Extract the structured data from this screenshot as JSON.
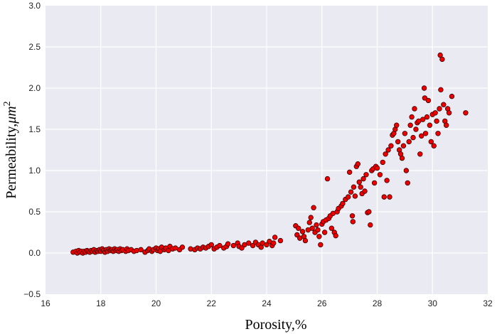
{
  "chart_data": {
    "type": "scatter",
    "title": "",
    "xlabel": "Porosity,%",
    "ylabel_main": "Permeability,",
    "ylabel_unit": "μm",
    "ylabel_exp": "2",
    "xlim": [
      16,
      32
    ],
    "ylim": [
      -0.5,
      3.0
    ],
    "x_ticks": [
      16,
      18,
      20,
      22,
      24,
      26,
      28,
      30,
      32
    ],
    "x_tick_labels": [
      "16",
      "18",
      "20",
      "22",
      "24",
      "26",
      "28",
      "30",
      "32"
    ],
    "y_ticks": [
      -0.5,
      0.0,
      0.5,
      1.0,
      1.5,
      2.0,
      2.5,
      3.0
    ],
    "y_tick_labels": [
      "−0.5",
      "0.0",
      "0.5",
      "1.0",
      "1.5",
      "2.0",
      "2.5",
      "3.0"
    ],
    "grid": true,
    "legend": "none",
    "colors": {
      "plot_background": "#eaeaf2",
      "grid": "#ffffff",
      "marker_fill": "#ee0000",
      "marker_edge": "#3a0000"
    },
    "points": [
      [
        17.0,
        0.01
      ],
      [
        17.1,
        0.02
      ],
      [
        17.15,
        0.0
      ],
      [
        17.2,
        0.03
      ],
      [
        17.25,
        0.01
      ],
      [
        17.3,
        0.02
      ],
      [
        17.35,
        0.0
      ],
      [
        17.4,
        0.02
      ],
      [
        17.45,
        0.01
      ],
      [
        17.5,
        0.03
      ],
      [
        17.55,
        0.02
      ],
      [
        17.6,
        0.01
      ],
      [
        17.65,
        0.03
      ],
      [
        17.7,
        0.02
      ],
      [
        17.75,
        0.04
      ],
      [
        17.8,
        0.01
      ],
      [
        17.85,
        0.03
      ],
      [
        17.9,
        0.02
      ],
      [
        17.95,
        0.04
      ],
      [
        18.0,
        0.02
      ],
      [
        18.05,
        0.05
      ],
      [
        18.1,
        0.03
      ],
      [
        18.15,
        0.01
      ],
      [
        18.2,
        0.04
      ],
      [
        18.25,
        0.02
      ],
      [
        18.3,
        0.05
      ],
      [
        18.35,
        0.03
      ],
      [
        18.4,
        0.04
      ],
      [
        18.45,
        0.02
      ],
      [
        18.5,
        0.05
      ],
      [
        18.55,
        0.03
      ],
      [
        18.6,
        0.04
      ],
      [
        18.65,
        0.02
      ],
      [
        18.7,
        0.05
      ],
      [
        18.75,
        0.03
      ],
      [
        18.8,
        0.04
      ],
      [
        18.9,
        0.02
      ],
      [
        18.95,
        0.05
      ],
      [
        19.0,
        0.03
      ],
      [
        19.1,
        0.04
      ],
      [
        19.2,
        0.02
      ],
      [
        19.3,
        0.03
      ],
      [
        19.45,
        0.04
      ],
      [
        19.6,
        0.01
      ],
      [
        19.7,
        0.03
      ],
      [
        19.75,
        0.05
      ],
      [
        19.85,
        0.02
      ],
      [
        19.9,
        0.04
      ],
      [
        20.0,
        0.06
      ],
      [
        20.05,
        0.03
      ],
      [
        20.1,
        0.05
      ],
      [
        20.15,
        0.02
      ],
      [
        20.2,
        0.07
      ],
      [
        20.3,
        0.04
      ],
      [
        20.35,
        0.06
      ],
      [
        20.45,
        0.03
      ],
      [
        20.5,
        0.08
      ],
      [
        20.6,
        0.05
      ],
      [
        20.7,
        0.06
      ],
      [
        20.85,
        0.04
      ],
      [
        20.95,
        0.07
      ],
      [
        21.25,
        0.05
      ],
      [
        21.4,
        0.04
      ],
      [
        21.5,
        0.06
      ],
      [
        21.6,
        0.05
      ],
      [
        21.7,
        0.07
      ],
      [
        21.8,
        0.06
      ],
      [
        21.9,
        0.08
      ],
      [
        22.0,
        0.1
      ],
      [
        22.1,
        0.05
      ],
      [
        22.2,
        0.07
      ],
      [
        22.3,
        0.09
      ],
      [
        22.45,
        0.06
      ],
      [
        22.55,
        0.08
      ],
      [
        22.6,
        0.11
      ],
      [
        22.8,
        0.09
      ],
      [
        22.95,
        0.12
      ],
      [
        23.0,
        0.08
      ],
      [
        23.1,
        0.06
      ],
      [
        23.2,
        0.1
      ],
      [
        23.35,
        0.12
      ],
      [
        23.5,
        0.09
      ],
      [
        23.6,
        0.13
      ],
      [
        23.7,
        0.1
      ],
      [
        23.8,
        0.07
      ],
      [
        23.85,
        0.12
      ],
      [
        24.0,
        0.1
      ],
      [
        24.1,
        0.14
      ],
      [
        24.2,
        0.09
      ],
      [
        24.25,
        0.12
      ],
      [
        24.3,
        0.19
      ],
      [
        24.5,
        0.15
      ],
      [
        25.05,
        0.33
      ],
      [
        25.1,
        0.22
      ],
      [
        25.15,
        0.3
      ],
      [
        25.2,
        0.18
      ],
      [
        25.3,
        0.26
      ],
      [
        25.35,
        0.2
      ],
      [
        25.4,
        0.15
      ],
      [
        25.5,
        0.28
      ],
      [
        25.55,
        0.37
      ],
      [
        25.6,
        0.43
      ],
      [
        25.65,
        0.3
      ],
      [
        25.7,
        0.55
      ],
      [
        25.75,
        0.25
      ],
      [
        25.8,
        0.34
      ],
      [
        25.85,
        0.28
      ],
      [
        25.9,
        0.2
      ],
      [
        25.95,
        0.1
      ],
      [
        26.0,
        0.35
      ],
      [
        26.05,
        0.38
      ],
      [
        26.1,
        0.25
      ],
      [
        26.15,
        0.4
      ],
      [
        26.2,
        0.9
      ],
      [
        26.25,
        0.42
      ],
      [
        26.3,
        0.45
      ],
      [
        26.35,
        0.3
      ],
      [
        26.4,
        0.48
      ],
      [
        26.45,
        0.25
      ],
      [
        26.5,
        0.21
      ],
      [
        26.55,
        0.5
      ],
      [
        26.6,
        0.54
      ],
      [
        26.7,
        0.57
      ],
      [
        26.75,
        0.6
      ],
      [
        26.85,
        0.65
      ],
      [
        26.95,
        0.68
      ],
      [
        27.0,
        0.98
      ],
      [
        27.05,
        0.74
      ],
      [
        27.1,
        0.45
      ],
      [
        27.12,
        0.38
      ],
      [
        27.15,
        0.8
      ],
      [
        27.2,
        0.69
      ],
      [
        27.25,
        1.05
      ],
      [
        27.3,
        1.08
      ],
      [
        27.35,
        0.86
      ],
      [
        27.4,
        0.8
      ],
      [
        27.45,
        0.72
      ],
      [
        27.5,
        0.9
      ],
      [
        27.55,
        0.75
      ],
      [
        27.6,
        0.95
      ],
      [
        27.65,
        0.49
      ],
      [
        27.7,
        0.5
      ],
      [
        27.75,
        0.34
      ],
      [
        27.8,
        1.0
      ],
      [
        27.85,
        1.02
      ],
      [
        27.9,
        0.85
      ],
      [
        27.95,
        1.05
      ],
      [
        28.0,
        1.03
      ],
      [
        28.1,
        0.95
      ],
      [
        28.2,
        1.1
      ],
      [
        28.25,
        0.68
      ],
      [
        28.3,
        1.2
      ],
      [
        28.35,
        0.88
      ],
      [
        28.4,
        1.25
      ],
      [
        28.45,
        0.68
      ],
      [
        28.5,
        1.3
      ],
      [
        28.55,
        1.43
      ],
      [
        28.6,
        1.45
      ],
      [
        28.65,
        1.5
      ],
      [
        28.7,
        1.55
      ],
      [
        28.75,
        1.35
      ],
      [
        28.8,
        1.25
      ],
      [
        28.85,
        1.2
      ],
      [
        28.9,
        1.15
      ],
      [
        28.95,
        1.3
      ],
      [
        29.0,
        1.45
      ],
      [
        29.05,
        1.0
      ],
      [
        29.1,
        0.85
      ],
      [
        29.15,
        1.35
      ],
      [
        29.2,
        1.55
      ],
      [
        29.25,
        1.65
      ],
      [
        29.3,
        1.4
      ],
      [
        29.35,
        1.75
      ],
      [
        29.4,
        1.5
      ],
      [
        29.45,
        1.58
      ],
      [
        29.5,
        1.6
      ],
      [
        29.55,
        1.2
      ],
      [
        29.6,
        1.42
      ],
      [
        29.65,
        1.62
      ],
      [
        29.7,
        2.0
      ],
      [
        29.72,
        1.88
      ],
      [
        29.75,
        1.45
      ],
      [
        29.8,
        1.65
      ],
      [
        29.85,
        1.85
      ],
      [
        29.9,
        1.55
      ],
      [
        29.95,
        1.35
      ],
      [
        30.0,
        1.68
      ],
      [
        30.05,
        1.3
      ],
      [
        30.1,
        1.7
      ],
      [
        30.15,
        1.6
      ],
      [
        30.2,
        1.45
      ],
      [
        30.25,
        1.75
      ],
      [
        30.28,
        2.4
      ],
      [
        30.3,
        1.98
      ],
      [
        30.35,
        2.35
      ],
      [
        30.4,
        1.8
      ],
      [
        30.45,
        1.6
      ],
      [
        30.5,
        1.55
      ],
      [
        30.55,
        1.75
      ],
      [
        30.6,
        1.7
      ],
      [
        30.7,
        1.9
      ],
      [
        31.2,
        1.7
      ]
    ]
  }
}
